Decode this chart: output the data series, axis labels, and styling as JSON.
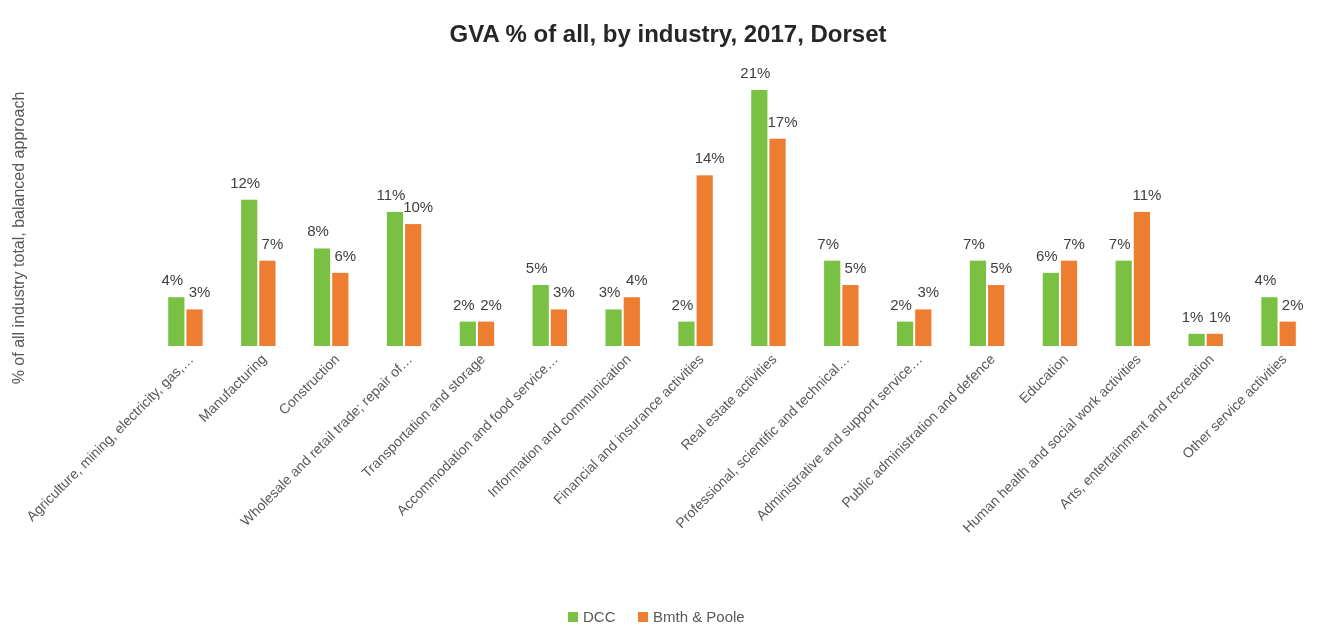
{
  "chart_data": {
    "type": "bar",
    "title": "GVA % of all, by industry, 2017, Dorset",
    "ylabel": "% of all industry total, balanced approach",
    "categories": [
      "Agriculture, mining, electricity, gas,…",
      "Manufacturing",
      "Construction",
      "Wholesale and retail trade; repair of…",
      "Transportation and storage",
      "Accommodation and food service…",
      "Information and communication",
      "Financial and insurance activities",
      "Real estate activities",
      "Professional, scientific and technical…",
      "Administrative and support service…",
      "Public administration and defence",
      "Education",
      "Human health and social work activities",
      "Arts, entertainment and recreation",
      "Other service activities"
    ],
    "series": [
      {
        "name": "DCC",
        "color": "#7ac143",
        "values": [
          4,
          12,
          8,
          11,
          2,
          5,
          3,
          2,
          21,
          7,
          2,
          7,
          6,
          7,
          1,
          4
        ],
        "value_labels": [
          "4%",
          "12%",
          "8%",
          "11%",
          "2%",
          "5%",
          "3%",
          "2%",
          "21%",
          "7%",
          "2%",
          "7%",
          "6%",
          "7%",
          "1%",
          "4%"
        ]
      },
      {
        "name": "Bmth & Poole",
        "color": "#ed7d31",
        "values": [
          3,
          7,
          6,
          10,
          2,
          3,
          4,
          14,
          17,
          5,
          3,
          5,
          7,
          11,
          1,
          2
        ],
        "value_labels": [
          "3%",
          "7%",
          "6%",
          "10%",
          "2%",
          "3%",
          "4%",
          "14%",
          "17%",
          "5%",
          "3%",
          "5%",
          "7%",
          "11%",
          "1%",
          "2%"
        ]
      }
    ],
    "legend": "bottom"
  }
}
